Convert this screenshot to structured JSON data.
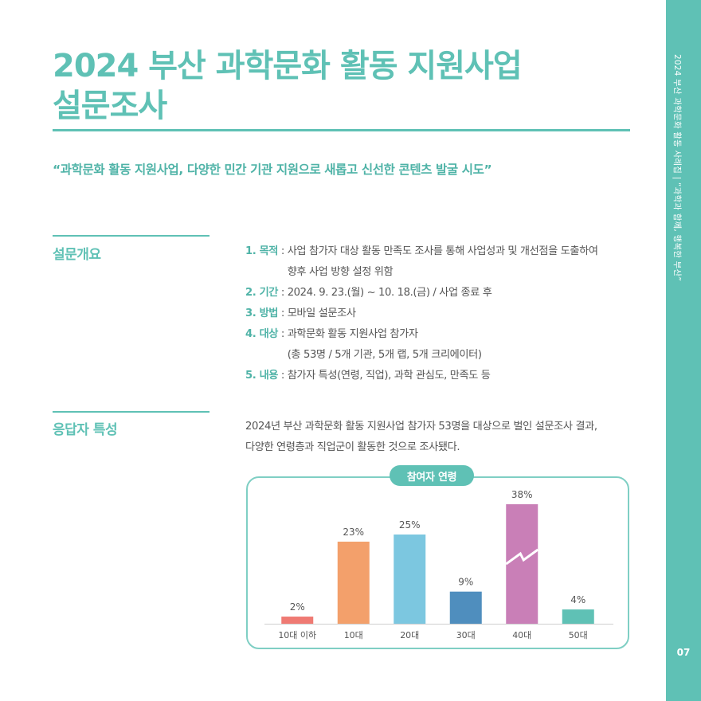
{
  "header": {
    "title_line1": "2024 부산 과학문화 활동 지원사업",
    "title_line2": "설문조사",
    "quote": "“과학문화 활동 지원사업, 다양한 민간 기관 지원으로 새롭고 신선한 콘텐츠 발굴 시도”"
  },
  "side": {
    "text": "2024 부산 과학문화 활동 사례집 | “과학과 함께, 행복한 부산”",
    "page_number": "07"
  },
  "overview": {
    "heading": "설문개요",
    "items": [
      {
        "key": "1. 목적",
        "lines": [
          "사업 참가자 대상 활동 만족도 조사를 통해 사업성과 및 개선점을 도출하여",
          "향후 사업 방향 설정 위함"
        ]
      },
      {
        "key": "2. 기간",
        "lines": [
          "2024. 9. 23.(월) ~ 10. 18.(금) / 사업 종료 후"
        ]
      },
      {
        "key": "3. 방법",
        "lines": [
          "모바일 설문조사"
        ]
      },
      {
        "key": "4. 대상",
        "lines": [
          "과학문화 활동 지원사업 참가자",
          "(총 53명 / 5개 기관, 5개 랩, 5개 크리에이터)"
        ]
      },
      {
        "key": "5. 내용",
        "lines": [
          "참가자 특성(연령, 직업), 과학 관심도, 만족도 등"
        ]
      }
    ]
  },
  "respondents": {
    "heading": "응답자 특성",
    "line1": "2024년 부산 과학문화 활동 지원사업 참가자 53명을 대상으로 벌인 설문조사 결과,",
    "line2": "다양한 연령층과 직업군이 활동한 것으로 조사됐다."
  },
  "chart_data": {
    "type": "bar",
    "title": "참여자 연령",
    "categories": [
      "10대 이하",
      "10대",
      "20대",
      "30대",
      "40대",
      "50대"
    ],
    "values": [
      2,
      23,
      25,
      9,
      38,
      4
    ],
    "value_labels": [
      "2%",
      "23%",
      "25%",
      "9%",
      "38%",
      "4%"
    ],
    "colors": [
      "#ef7a73",
      "#f3a06b",
      "#7cc7e0",
      "#4f8ebe",
      "#c97fb7",
      "#5fc1b5"
    ],
    "axis_break_category": "40대",
    "legend": "none",
    "grid": false
  }
}
